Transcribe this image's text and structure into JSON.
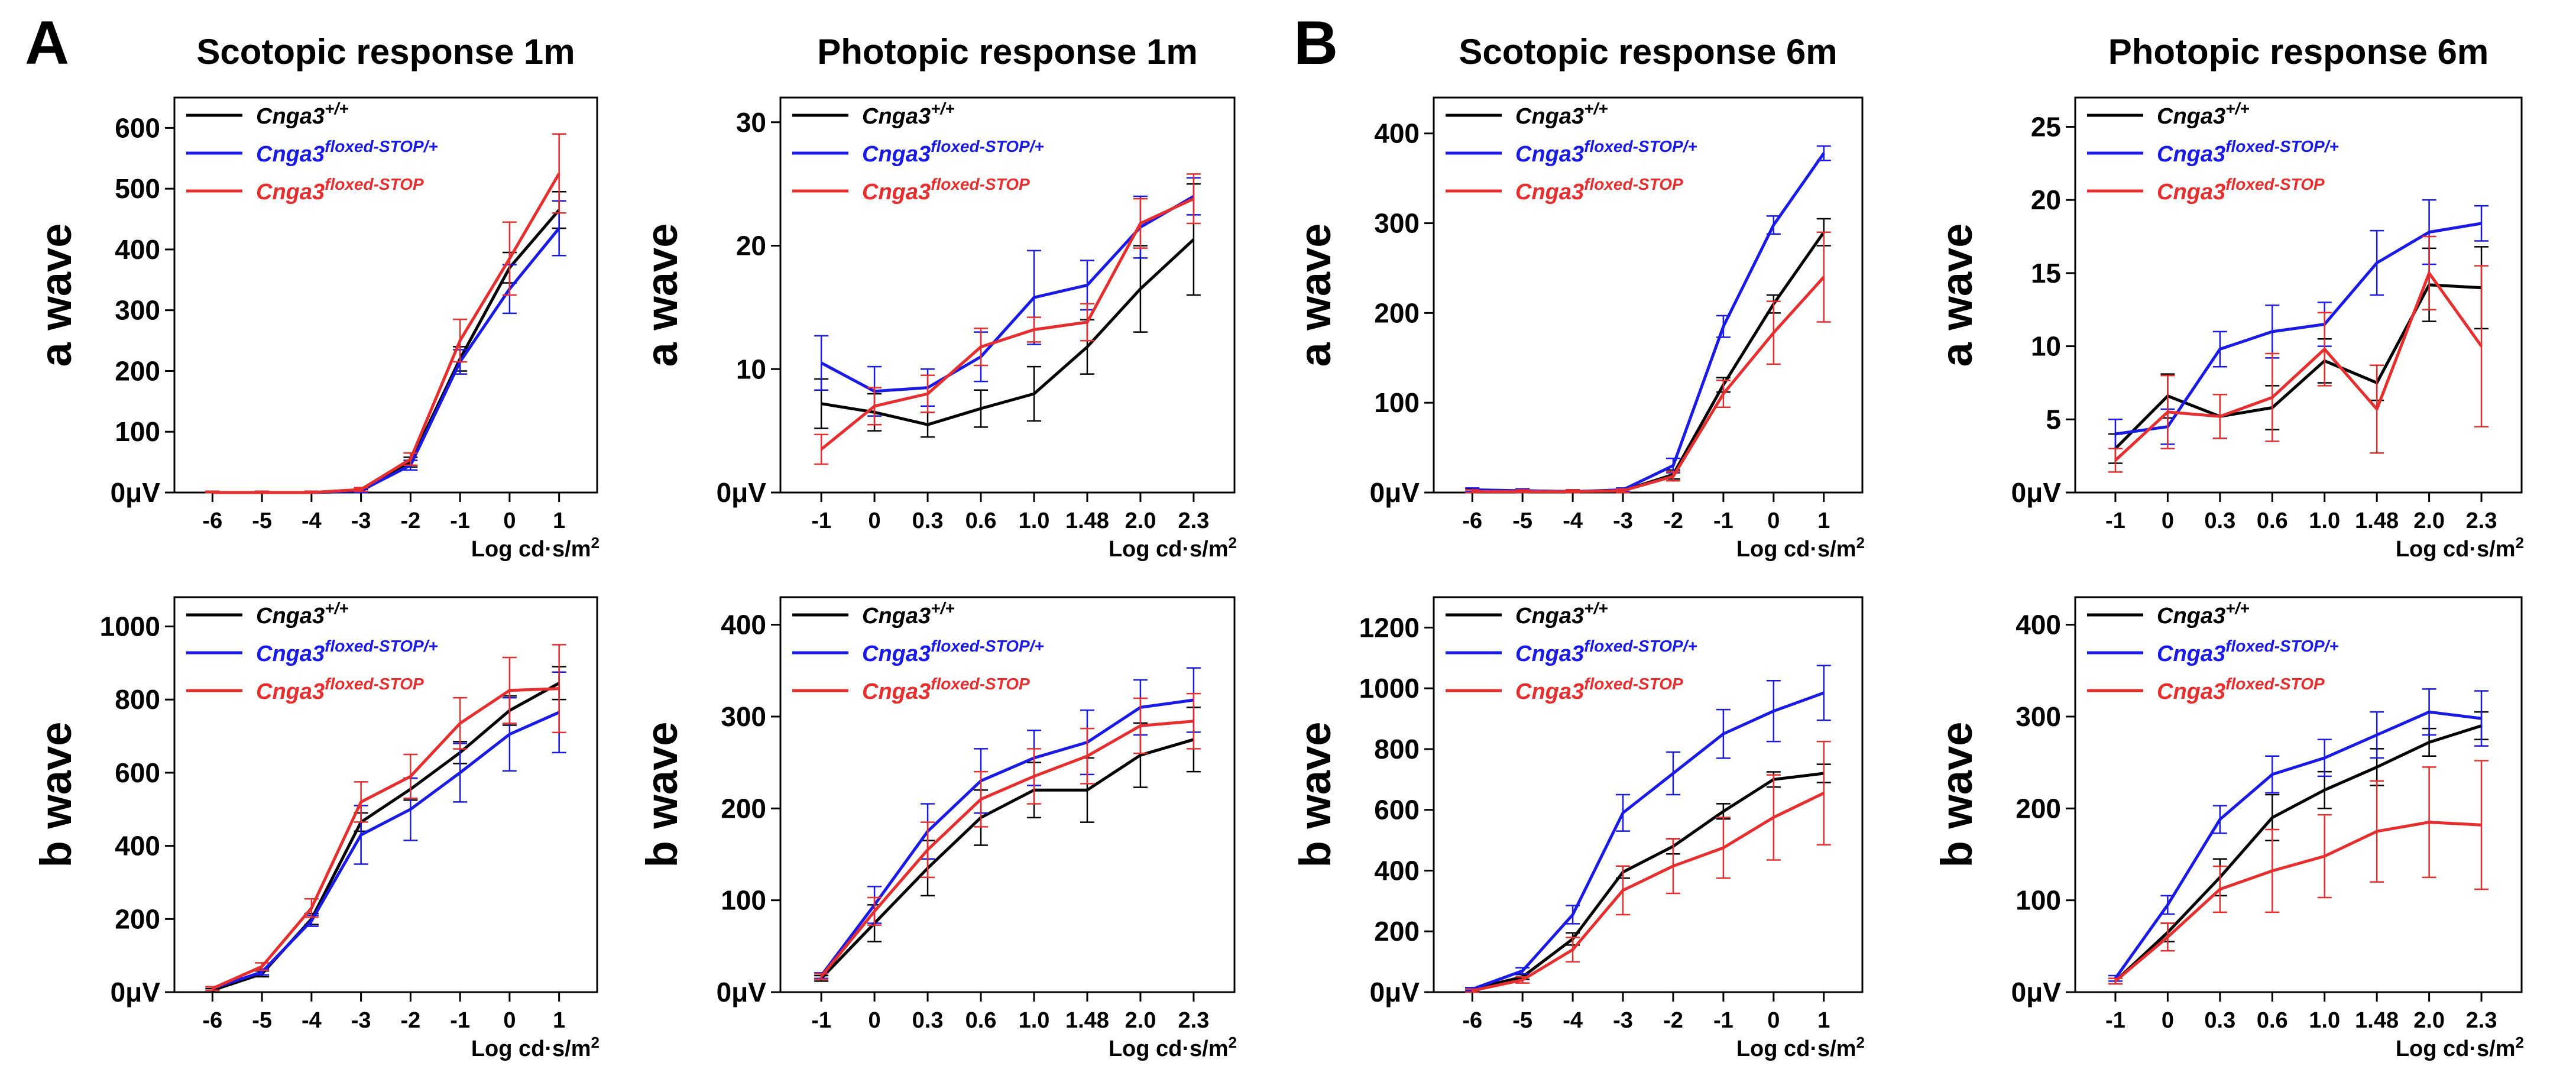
{
  "figure": {
    "panel_letters": [
      "A",
      "B"
    ],
    "legend_base": "Cnga3",
    "series_defs": [
      {
        "key": "wt",
        "sup": "+/+",
        "color": "#000000"
      },
      {
        "key": "het",
        "sup": "floxed-STOP/+",
        "color": "#1a1ae6"
      },
      {
        "key": "ko",
        "sup": "floxed-STOP",
        "color": "#e62e2e"
      }
    ],
    "zero_label": "0μV",
    "x_unit_label": "Log cd·s/m",
    "x_unit_sup": "2"
  },
  "chart_data": [
    {
      "id": "scotopic-1m-a",
      "type": "line",
      "title": "Scotopic response 1m",
      "ylabel": "a wave",
      "categories": [
        "-6",
        "-5",
        "-4",
        "-3",
        "-2",
        "-1",
        "0",
        "1"
      ],
      "ylim": [
        0,
        650
      ],
      "yticks": [
        0,
        100,
        200,
        300,
        400,
        500,
        600
      ],
      "series": [
        {
          "name": "Cnga3+/+",
          "values": [
            0,
            0,
            0,
            2,
            50,
            220,
            370,
            465
          ],
          "errors": [
            2,
            2,
            2,
            3,
            8,
            20,
            25,
            30
          ]
        },
        {
          "name": "Cnga3floxed-STOP/+",
          "values": [
            0,
            0,
            0,
            3,
            45,
            215,
            335,
            435
          ],
          "errors": [
            2,
            2,
            2,
            3,
            8,
            20,
            40,
            45
          ]
        },
        {
          "name": "Cnga3floxed-STOP",
          "values": [
            0,
            0,
            0,
            5,
            55,
            250,
            385,
            525
          ],
          "errors": [
            2,
            2,
            2,
            3,
            10,
            35,
            60,
            65
          ]
        }
      ]
    },
    {
      "id": "photopic-1m-a",
      "type": "line",
      "title": "Photopic response 1m",
      "ylabel": "a wave",
      "categories": [
        "-1",
        "0",
        "0.3",
        "0.6",
        "1.0",
        "1.48",
        "2.0",
        "2.3"
      ],
      "ylim": [
        0,
        32
      ],
      "yticks": [
        0,
        10,
        20,
        30
      ],
      "series": [
        {
          "name": "Cnga3+/+",
          "values": [
            7.2,
            6.5,
            5.5,
            6.8,
            8.0,
            11.8,
            16.5,
            20.5
          ],
          "errors": [
            2.0,
            1.5,
            1.0,
            1.5,
            2.2,
            2.2,
            3.5,
            4.5
          ]
        },
        {
          "name": "Cnga3floxed-STOP/+",
          "values": [
            10.5,
            8.2,
            8.5,
            11.0,
            15.8,
            16.8,
            21.5,
            24.0
          ],
          "errors": [
            2.2,
            2.0,
            1.5,
            2.0,
            3.8,
            2.0,
            2.5,
            1.5
          ]
        },
        {
          "name": "Cnga3floxed-STOP",
          "values": [
            3.5,
            7.0,
            8.0,
            11.8,
            13.2,
            13.8,
            21.8,
            23.8
          ],
          "errors": [
            1.2,
            1.5,
            1.5,
            1.5,
            1.0,
            1.5,
            2.0,
            2.0
          ]
        }
      ]
    },
    {
      "id": "scotopic-6m-a",
      "type": "line",
      "title": "Scotopic response 6m",
      "ylabel": "a wave",
      "categories": [
        "-6",
        "-5",
        "-4",
        "-3",
        "-2",
        "-1",
        "0",
        "1"
      ],
      "ylim": [
        0,
        440
      ],
      "yticks": [
        0,
        100,
        200,
        300,
        400
      ],
      "series": [
        {
          "name": "Cnga3+/+",
          "values": [
            2,
            2,
            1,
            2,
            20,
            120,
            210,
            290
          ],
          "errors": [
            2,
            2,
            2,
            2,
            5,
            8,
            10,
            15
          ]
        },
        {
          "name": "Cnga3floxed-STOP/+",
          "values": [
            3,
            2,
            1,
            3,
            30,
            185,
            298,
            378
          ],
          "errors": [
            2,
            2,
            2,
            2,
            8,
            12,
            10,
            8
          ]
        },
        {
          "name": "Cnga3floxed-STOP",
          "values": [
            1,
            1,
            1,
            2,
            18,
            110,
            178,
            240
          ],
          "errors": [
            2,
            2,
            2,
            2,
            5,
            15,
            35,
            50
          ]
        }
      ]
    },
    {
      "id": "photopic-6m-a",
      "type": "line",
      "title": "Photopic response 6m",
      "ylabel": "a wave",
      "categories": [
        "-1",
        "0",
        "0.3",
        "0.6",
        "1.0",
        "1.48",
        "2.0",
        "2.3"
      ],
      "ylim": [
        0,
        27
      ],
      "yticks": [
        0,
        5,
        10,
        15,
        20,
        25
      ],
      "series": [
        {
          "name": "Cnga3+/+",
          "values": [
            3.0,
            6.6,
            5.2,
            5.8,
            9.0,
            7.5,
            14.2,
            14.0
          ],
          "errors": [
            1.0,
            1.5,
            1.5,
            1.5,
            1.5,
            1.2,
            2.5,
            2.8
          ]
        },
        {
          "name": "Cnga3floxed-STOP/+",
          "values": [
            4.0,
            4.5,
            9.8,
            11.0,
            11.5,
            15.7,
            17.8,
            18.4
          ],
          "errors": [
            1.0,
            1.2,
            1.2,
            1.8,
            1.5,
            2.2,
            2.2,
            1.2
          ]
        },
        {
          "name": "Cnga3floxed-STOP",
          "values": [
            2.2,
            5.5,
            5.2,
            6.5,
            9.8,
            5.7,
            15.0,
            10.0
          ],
          "errors": [
            0.8,
            2.5,
            1.5,
            3.0,
            2.5,
            3.0,
            2.5,
            5.5
          ]
        }
      ]
    },
    {
      "id": "scotopic-1m-b",
      "type": "line",
      "title": "",
      "ylabel": "b wave",
      "categories": [
        "-6",
        "-5",
        "-4",
        "-3",
        "-2",
        "-1",
        "0",
        "1"
      ],
      "ylim": [
        0,
        1080
      ],
      "yticks": [
        0,
        200,
        400,
        600,
        800,
        1000
      ],
      "series": [
        {
          "name": "Cnga3+/+",
          "values": [
            5,
            50,
            200,
            465,
            555,
            655,
            770,
            845
          ],
          "errors": [
            5,
            8,
            15,
            25,
            30,
            30,
            40,
            45
          ]
        },
        {
          "name": "Cnga3floxed-STOP/+",
          "values": [
            10,
            55,
            195,
            430,
            500,
            600,
            705,
            765
          ],
          "errors": [
            5,
            8,
            15,
            80,
            85,
            80,
            100,
            110
          ]
        },
        {
          "name": "Cnga3floxed-STOP",
          "values": [
            10,
            70,
            230,
            520,
            590,
            735,
            825,
            830
          ],
          "errors": [
            5,
            10,
            25,
            55,
            60,
            70,
            90,
            120
          ]
        }
      ]
    },
    {
      "id": "photopic-1m-b",
      "type": "line",
      "title": "",
      "ylabel": "b wave",
      "categories": [
        "-1",
        "0",
        "0.3",
        "0.6",
        "1.0",
        "1.48",
        "2.0",
        "2.3"
      ],
      "ylim": [
        0,
        430
      ],
      "yticks": [
        0,
        100,
        200,
        300,
        400
      ],
      "series": [
        {
          "name": "Cnga3+/+",
          "values": [
            15,
            75,
            135,
            190,
            220,
            220,
            258,
            275
          ],
          "errors": [
            3,
            20,
            30,
            30,
            30,
            35,
            35,
            35
          ]
        },
        {
          "name": "Cnga3floxed-STOP/+",
          "values": [
            18,
            95,
            175,
            230,
            255,
            272,
            310,
            318
          ],
          "errors": [
            3,
            20,
            30,
            35,
            30,
            35,
            30,
            35
          ]
        },
        {
          "name": "Cnga3floxed-STOP",
          "values": [
            17,
            88,
            155,
            210,
            235,
            257,
            290,
            295
          ],
          "errors": [
            3,
            15,
            30,
            30,
            30,
            30,
            30,
            30
          ]
        }
      ]
    },
    {
      "id": "scotopic-6m-b",
      "type": "line",
      "title": "",
      "ylabel": "b wave",
      "categories": [
        "-6",
        "-5",
        "-4",
        "-3",
        "-2",
        "-1",
        "0",
        "1"
      ],
      "ylim": [
        0,
        1300
      ],
      "yticks": [
        0,
        200,
        400,
        600,
        800,
        1000,
        1200
      ],
      "series": [
        {
          "name": "Cnga3+/+",
          "values": [
            10,
            50,
            175,
            395,
            480,
            595,
            700,
            720
          ],
          "errors": [
            5,
            8,
            20,
            20,
            25,
            25,
            25,
            30
          ]
        },
        {
          "name": "Cnga3floxed-STOP/+",
          "values": [
            10,
            70,
            255,
            590,
            720,
            850,
            925,
            985
          ],
          "errors": [
            5,
            10,
            30,
            60,
            70,
            80,
            100,
            90
          ]
        },
        {
          "name": "Cnga3floxed-STOP",
          "values": [
            5,
            40,
            140,
            335,
            415,
            475,
            575,
            655
          ],
          "errors": [
            5,
            10,
            40,
            80,
            90,
            100,
            140,
            170
          ]
        }
      ]
    },
    {
      "id": "photopic-6m-b",
      "type": "line",
      "title": "",
      "ylabel": "b wave",
      "categories": [
        "-1",
        "0",
        "0.3",
        "0.6",
        "1.0",
        "1.48",
        "2.0",
        "2.3"
      ],
      "ylim": [
        0,
        430
      ],
      "yticks": [
        0,
        100,
        200,
        300,
        400
      ],
      "series": [
        {
          "name": "Cnga3+/+",
          "values": [
            12,
            65,
            125,
            190,
            220,
            245,
            272,
            290
          ],
          "errors": [
            3,
            10,
            20,
            25,
            20,
            20,
            15,
            15
          ]
        },
        {
          "name": "Cnga3floxed-STOP/+",
          "values": [
            15,
            95,
            188,
            237,
            255,
            280,
            305,
            298
          ],
          "errors": [
            3,
            10,
            15,
            20,
            20,
            25,
            25,
            30
          ]
        },
        {
          "name": "Cnga3floxed-STOP",
          "values": [
            12,
            60,
            112,
            132,
            148,
            175,
            185,
            182
          ],
          "errors": [
            3,
            15,
            25,
            45,
            45,
            55,
            60,
            70
          ]
        }
      ]
    }
  ]
}
